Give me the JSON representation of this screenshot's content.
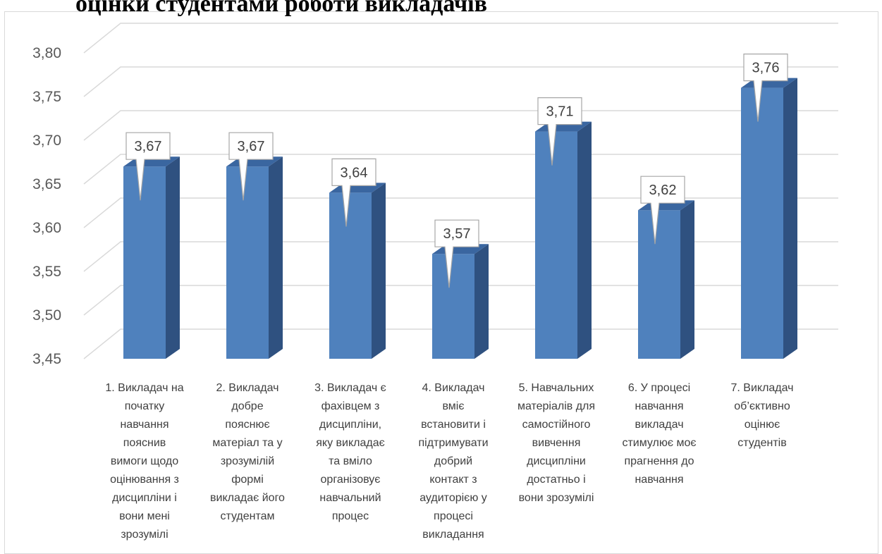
{
  "header": {
    "cut_title": "оцінки студентами роботи викладачів"
  },
  "chart_data": {
    "type": "bar",
    "title": "",
    "xlabel": "",
    "ylabel": "",
    "ylim": [
      3.45,
      3.8
    ],
    "ytick_step": 0.05,
    "decimal_separator": ",",
    "grid": true,
    "three_d": true,
    "colors": {
      "front": "#4f81bd",
      "side": "#2f5180",
      "top": "#3a66a0",
      "grid": "#d9d9d9",
      "callout_border": "#a6a6a6"
    },
    "categories": [
      "1. Викладач на початку навчання пояснив вимоги щодо оцінювання з дисципліни і вони мені зрозумілі",
      "2. Викладач добре пояснює матеріал та у зрозумілій формі викладає його студентам",
      "3. Викладач є фахівцем з дисципліни, яку викладає та вміло організовує навчальний процес",
      "4. Викладач вміє встановити і підтримувати добрий контакт з аудиторією у процесі викладання",
      "5. Навчальних матеріалів для самостійного вивчення дисципліни достатньо і вони зрозумілі",
      "6.  У процесі навчання викладач стимулює моє прагнення до навчання",
      "7. Викладач об’єктивно оцінює студентів"
    ],
    "category_lines": [
      [
        "1. Викладач на",
        "початку",
        "навчання",
        "пояснив",
        "вимоги щодо",
        "оцінювання з",
        "дисципліни і",
        "вони мені",
        "зрозумілі"
      ],
      [
        "2. Викладач",
        "добре",
        "пояснює",
        "матеріал та у",
        "зрозумілій",
        "формі",
        "викладає його",
        "студентам"
      ],
      [
        "3. Викладач є",
        "фахівцем з",
        "дисципліни,",
        "яку викладає",
        "та вміло",
        "організовує",
        "навчальний",
        "процес"
      ],
      [
        "4. Викладач",
        "вміє",
        "встановити і",
        "підтримувати",
        "добрий",
        "контакт з",
        "аудиторією у",
        "процесі",
        "викладання"
      ],
      [
        "5. Навчальних",
        "матеріалів для",
        "самостійного",
        "вивчення",
        "дисципліни",
        "достатньо і",
        "вони зрозумілі"
      ],
      [
        "6.  У процесі",
        "навчання",
        "викладач",
        "стимулює моє",
        "прагнення до",
        "навчання"
      ],
      [
        "7. Викладач",
        "об’єктивно",
        "оцінює",
        "студентів"
      ]
    ],
    "values": [
      3.67,
      3.67,
      3.64,
      3.57,
      3.71,
      3.62,
      3.76
    ],
    "data_labels": [
      "3,67",
      "3,67",
      "3,64",
      "3,57",
      "3,71",
      "3,62",
      "3,76"
    ],
    "ytick_labels": [
      "3,45",
      "3,50",
      "3,55",
      "3,60",
      "3,65",
      "3,70",
      "3,75",
      "3,80"
    ]
  }
}
